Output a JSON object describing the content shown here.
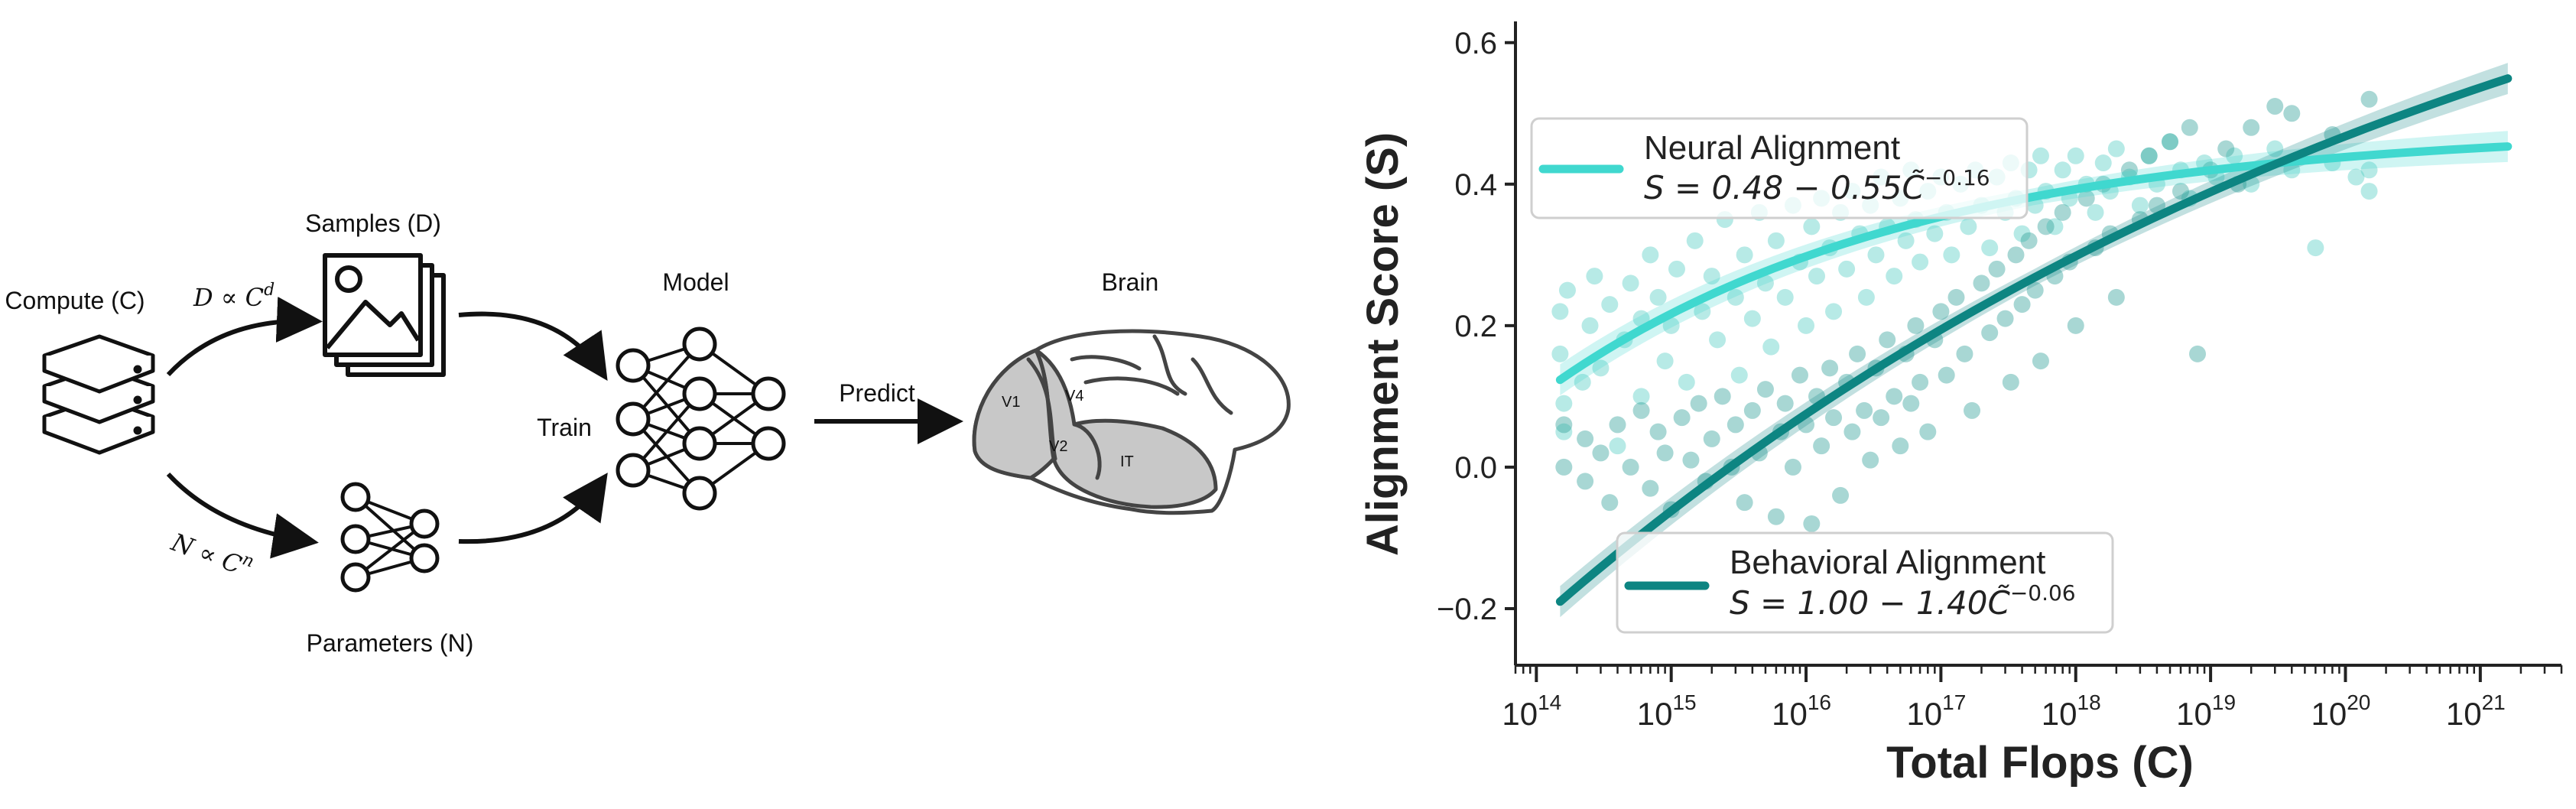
{
  "diagram": {
    "compute_label": "Compute (C)",
    "samples_label": "Samples (D)",
    "parameters_label": "Parameters (N)",
    "model_label": "Model",
    "brain_label": "Brain",
    "train_label": "Train",
    "predict_label": "Predict",
    "samples_formula": "D ∝ C",
    "samples_exp": "d",
    "params_formula": "N ∝ C",
    "params_exp": "n",
    "area_v1": "V1",
    "area_v4": "V4",
    "area_v2": "V2",
    "area_it": "IT"
  },
  "colors": {
    "neural": "#40d8cf",
    "behavioral": "#0d8582",
    "scatter_neural": "#54ccc3",
    "scatter_behavioral": "#2f9f98",
    "brain_fill": "#c8c8c8",
    "ink": "#111111"
  },
  "chart_data": {
    "type": "scatter",
    "xlabel": "Total Flops (C)",
    "ylabel": "Alignment Score (S)",
    "x_scale": "log",
    "xlim": [
      70000000000000.0,
      4e+21
    ],
    "ylim": [
      -0.28,
      0.63
    ],
    "x_ticks": [
      {
        "base": "10",
        "exp": "14",
        "value": 100000000000000.0
      },
      {
        "base": "10",
        "exp": "15",
        "value": 1000000000000000.0
      },
      {
        "base": "10",
        "exp": "16",
        "value": 1e+16
      },
      {
        "base": "10",
        "exp": "17",
        "value": 1e+17
      },
      {
        "base": "10",
        "exp": "18",
        "value": 1e+18
      },
      {
        "base": "10",
        "exp": "19",
        "value": 1e+19
      },
      {
        "base": "10",
        "exp": "20",
        "value": 1e+20
      },
      {
        "base": "10",
        "exp": "21",
        "value": 1e+21
      }
    ],
    "y_ticks": [
      {
        "label": "−0.2",
        "value": -0.2
      },
      {
        "label": "0.0",
        "value": 0.0
      },
      {
        "label": "0.2",
        "value": 0.2
      },
      {
        "label": "0.4",
        "value": 0.4
      },
      {
        "label": "0.6",
        "value": 0.6
      }
    ],
    "grid": false,
    "legend": [
      {
        "name": "Neural  Alignment",
        "formula": "S = 0.48 − 0.55C̃",
        "formula_exp": "−0.16",
        "placement": "upper-left"
      },
      {
        "name": "Behavioral  Alignment",
        "formula": "S = 1.00 − 1.40C̃",
        "formula_exp": "−0.06",
        "placement": "lower-center"
      }
    ],
    "series": [
      {
        "name": "Neural  Alignment",
        "fit": {
          "a": 0.48,
          "b": 0.55,
          "c": 0.16,
          "x_range": [
            150000000000000.0,
            1.6e+21
          ]
        },
        "points": [
          [
            150000000000000.0,
            0.22
          ],
          [
            150000000000000.0,
            0.16
          ],
          [
            160000000000000.0,
            0.09
          ],
          [
            160000000000000.0,
            0.05
          ],
          [
            170000000000000.0,
            0.25
          ],
          [
            220000000000000.0,
            0.12
          ],
          [
            250000000000000.0,
            0.2
          ],
          [
            270000000000000.0,
            0.27
          ],
          [
            300000000000000.0,
            0.14
          ],
          [
            350000000000000.0,
            0.23
          ],
          [
            400000000000000.0,
            0.03
          ],
          [
            450000000000000.0,
            0.18
          ],
          [
            500000000000000.0,
            0.26
          ],
          [
            600000000000000.0,
            0.21
          ],
          [
            600000000000000.0,
            0.1
          ],
          [
            700000000000000.0,
            0.3
          ],
          [
            800000000000000.0,
            0.24
          ],
          [
            900000000000000.0,
            0.15
          ],
          [
            1000000000000000.0,
            0.2
          ],
          [
            1100000000000000.0,
            0.28
          ],
          [
            1300000000000000.0,
            0.12
          ],
          [
            1500000000000000.0,
            0.32
          ],
          [
            1700000000000000.0,
            0.22
          ],
          [
            2000000000000000.0,
            0.27
          ],
          [
            2200000000000000.0,
            0.18
          ],
          [
            2500000000000000.0,
            0.35
          ],
          [
            3000000000000000.0,
            0.24
          ],
          [
            3200000000000000.0,
            0.13
          ],
          [
            3500000000000000.0,
            0.3
          ],
          [
            4000000000000000.0,
            0.21
          ],
          [
            4500000000000000.0,
            0.36
          ],
          [
            5000000000000000.0,
            0.26
          ],
          [
            5500000000000000.0,
            0.17
          ],
          [
            6000000000000000.0,
            0.32
          ],
          [
            7000000000000000.0,
            0.24
          ],
          [
            8000000000000000.0,
            0.37
          ],
          [
            9000000000000000.0,
            0.29
          ],
          [
            1e+16,
            0.2
          ],
          [
            1.1e+16,
            0.34
          ],
          [
            1.2e+16,
            0.27
          ],
          [
            1.3e+16,
            0.38
          ],
          [
            1.5e+16,
            0.31
          ],
          [
            1.6e+16,
            0.22
          ],
          [
            1.8e+16,
            0.36
          ],
          [
            2e+16,
            0.28
          ],
          [
            2.2e+16,
            0.39
          ],
          [
            2.5e+16,
            0.33
          ],
          [
            2.8e+16,
            0.24
          ],
          [
            3e+16,
            0.37
          ],
          [
            3.3e+16,
            0.3
          ],
          [
            3.6e+16,
            0.41
          ],
          [
            4e+16,
            0.34
          ],
          [
            4.5e+16,
            0.27
          ],
          [
            5e+16,
            0.38
          ],
          [
            5.5e+16,
            0.32
          ],
          [
            6e+16,
            0.42
          ],
          [
            6.5e+16,
            0.35
          ],
          [
            7e+16,
            0.29
          ],
          [
            8e+16,
            0.39
          ],
          [
            9e+16,
            0.33
          ],
          [
            1e+17,
            0.41
          ],
          [
            1.1e+17,
            0.36
          ],
          [
            1.2e+17,
            0.3
          ],
          [
            1.4e+17,
            0.4
          ],
          [
            1.6e+17,
            0.34
          ],
          [
            1.8e+17,
            0.42
          ],
          [
            2e+17,
            0.37
          ],
          [
            2.3e+17,
            0.31
          ],
          [
            2.6e+17,
            0.41
          ],
          [
            3e+17,
            0.36
          ],
          [
            3.3e+17,
            0.43
          ],
          [
            3.6e+17,
            0.38
          ],
          [
            4e+17,
            0.33
          ],
          [
            4.5e+17,
            0.42
          ],
          [
            5e+17,
            0.37
          ],
          [
            5.5e+17,
            0.44
          ],
          [
            6e+17,
            0.39
          ],
          [
            7e+17,
            0.34
          ],
          [
            8e+17,
            0.42
          ],
          [
            9e+17,
            0.38
          ],
          [
            1e+18,
            0.44
          ],
          [
            1.2e+18,
            0.4
          ],
          [
            1.4e+18,
            0.36
          ],
          [
            1.6e+18,
            0.43
          ],
          [
            1.8e+18,
            0.39
          ],
          [
            2e+18,
            0.45
          ],
          [
            2.5e+18,
            0.41
          ],
          [
            3e+18,
            0.37
          ],
          [
            3.5e+18,
            0.44
          ],
          [
            4e+18,
            0.4
          ],
          [
            5e+18,
            0.46
          ],
          [
            6e+18,
            0.42
          ],
          [
            7e+18,
            0.38
          ],
          [
            9e+18,
            0.43
          ],
          [
            1.1e+19,
            0.41
          ],
          [
            1.5e+19,
            0.44
          ],
          [
            2e+19,
            0.4
          ],
          [
            3e+19,
            0.45
          ],
          [
            4e+19,
            0.42
          ],
          [
            6e+19,
            0.31
          ],
          [
            8e+19,
            0.43
          ],
          [
            1.2e+20,
            0.41
          ],
          [
            1.5e+20,
            0.39
          ],
          [
            1.5e+20,
            0.42
          ]
        ]
      },
      {
        "name": "Behavioral  Alignment",
        "fit": {
          "a": 1.0,
          "b": 1.4,
          "c": 0.06,
          "x_range": [
            150000000000000.0,
            1.6e+21
          ]
        },
        "points": [
          [
            160000000000000.0,
            0.06
          ],
          [
            160000000000000.0,
            0.0
          ],
          [
            230000000000000.0,
            0.04
          ],
          [
            230000000000000.0,
            -0.02
          ],
          [
            300000000000000.0,
            0.02
          ],
          [
            350000000000000.0,
            -0.05
          ],
          [
            400000000000000.0,
            0.06
          ],
          [
            500000000000000.0,
            0.0
          ],
          [
            600000000000000.0,
            0.08
          ],
          [
            700000000000000.0,
            -0.03
          ],
          [
            800000000000000.0,
            0.05
          ],
          [
            900000000000000.0,
            0.02
          ],
          [
            1000000000000000.0,
            -0.06
          ],
          [
            1200000000000000.0,
            0.07
          ],
          [
            1400000000000000.0,
            0.01
          ],
          [
            1600000000000000.0,
            0.09
          ],
          [
            1800000000000000.0,
            -0.02
          ],
          [
            2000000000000000.0,
            0.04
          ],
          [
            2400000000000000.0,
            0.1
          ],
          [
            2800000000000000.0,
            0.0
          ],
          [
            3000000000000000.0,
            0.06
          ],
          [
            3500000000000000.0,
            -0.05
          ],
          [
            4000000000000000.0,
            0.08
          ],
          [
            4500000000000000.0,
            0.02
          ],
          [
            5000000000000000.0,
            0.11
          ],
          [
            6000000000000000.0,
            -0.07
          ],
          [
            6500000000000000.0,
            0.05
          ],
          [
            7000000000000000.0,
            0.09
          ],
          [
            8000000000000000.0,
            0.0
          ],
          [
            9000000000000000.0,
            0.13
          ],
          [
            1e+16,
            0.06
          ],
          [
            1.1e+16,
            -0.08
          ],
          [
            1.2e+16,
            0.1
          ],
          [
            1.3e+16,
            0.03
          ],
          [
            1.5e+16,
            0.14
          ],
          [
            1.6e+16,
            0.07
          ],
          [
            1.8e+16,
            -0.04
          ],
          [
            2e+16,
            0.12
          ],
          [
            2.2e+16,
            0.05
          ],
          [
            2.4e+16,
            0.16
          ],
          [
            2.7e+16,
            0.08
          ],
          [
            3e+16,
            0.01
          ],
          [
            3.3e+16,
            0.14
          ],
          [
            3.6e+16,
            0.07
          ],
          [
            4e+16,
            0.18
          ],
          [
            4.5e+16,
            0.1
          ],
          [
            5e+16,
            0.03
          ],
          [
            5.5e+16,
            0.16
          ],
          [
            6e+16,
            0.09
          ],
          [
            6.5e+16,
            0.2
          ],
          [
            7e+16,
            0.12
          ],
          [
            8e+16,
            0.05
          ],
          [
            9e+16,
            0.18
          ],
          [
            1e+17,
            0.22
          ],
          [
            1.1e+17,
            0.13
          ],
          [
            1.3e+17,
            0.24
          ],
          [
            1.5e+17,
            0.16
          ],
          [
            1.7e+17,
            0.08
          ],
          [
            2e+17,
            0.26
          ],
          [
            2.3e+17,
            0.19
          ],
          [
            2.6e+17,
            0.28
          ],
          [
            3e+17,
            0.21
          ],
          [
            3.3e+17,
            0.12
          ],
          [
            3.6e+17,
            0.3
          ],
          [
            4e+17,
            0.23
          ],
          [
            4.5e+17,
            0.32
          ],
          [
            5e+17,
            0.25
          ],
          [
            5.5e+17,
            0.15
          ],
          [
            6e+17,
            0.34
          ],
          [
            7e+17,
            0.27
          ],
          [
            8e+17,
            0.36
          ],
          [
            9e+17,
            0.29
          ],
          [
            1e+18,
            0.2
          ],
          [
            1.2e+18,
            0.38
          ],
          [
            1.4e+18,
            0.31
          ],
          [
            1.6e+18,
            0.4
          ],
          [
            1.8e+18,
            0.33
          ],
          [
            2e+18,
            0.24
          ],
          [
            2.5e+18,
            0.42
          ],
          [
            3e+18,
            0.35
          ],
          [
            3.5e+18,
            0.44
          ],
          [
            4e+18,
            0.37
          ],
          [
            5e+18,
            0.46
          ],
          [
            6e+18,
            0.39
          ],
          [
            7e+18,
            0.48
          ],
          [
            8e+18,
            0.16
          ],
          [
            1e+19,
            0.42
          ],
          [
            1.3e+19,
            0.45
          ],
          [
            1.6e+19,
            0.4
          ],
          [
            2e+19,
            0.48
          ],
          [
            3e+19,
            0.51
          ],
          [
            4e+19,
            0.5
          ],
          [
            8e+19,
            0.47
          ],
          [
            1.5e+20,
            0.52
          ]
        ]
      }
    ]
  }
}
